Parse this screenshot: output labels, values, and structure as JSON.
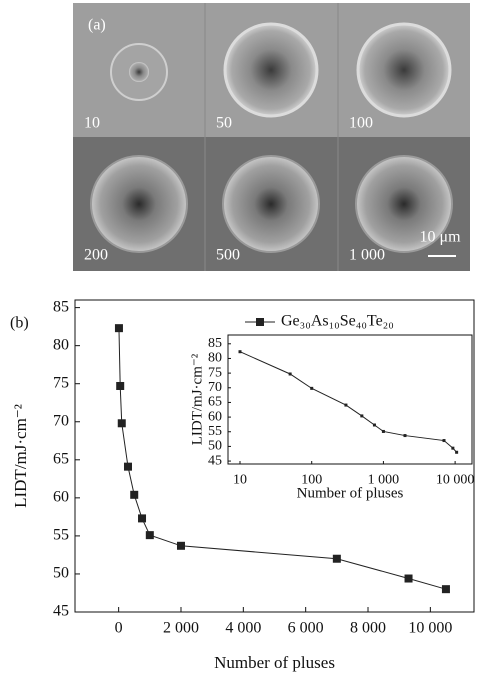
{
  "micrographs": {
    "panel_label": "(a)",
    "labels": [
      "10",
      "50",
      "100",
      "200",
      "500",
      "1 000"
    ],
    "scale_bar": "10 μm"
  },
  "chart_data": [
    {
      "type": "line",
      "panel_label": "(b)",
      "x_label": "Number of pluses",
      "y_label": "LIDT/mJ·cm⁻²",
      "legend": "upper right",
      "x": [
        10,
        50,
        100,
        300,
        500,
        750,
        1000,
        2000,
        7000,
        9300,
        10500
      ],
      "series": [
        {
          "name": "Ge₃₀As₁₀Se₄₀Te₂₀",
          "color": "#222222",
          "values": [
            82.3,
            74.7,
            69.8,
            64.1,
            60.4,
            57.3,
            55.1,
            53.7,
            52.0,
            49.4,
            48.0
          ]
        }
      ],
      "xlim": [
        -1400,
        11400
      ],
      "ylim": [
        45,
        86
      ],
      "xticks": [
        0,
        {
          "value": 2000,
          "label": "2 000"
        },
        {
          "value": 4000,
          "label": "4 000"
        },
        {
          "value": 6000,
          "label": "6 000"
        },
        {
          "value": 8000,
          "label": "8 000"
        },
        {
          "value": 10000,
          "label": "10 000"
        }
      ],
      "yticks": [
        45,
        50,
        55,
        60,
        65,
        70,
        75,
        80,
        85
      ],
      "grid": false
    },
    {
      "type": "line",
      "x_label": "Number of pluses",
      "y_label": "LIDT/mJ·cm⁻²",
      "log_x": true,
      "x": [
        10,
        50,
        100,
        300,
        500,
        750,
        1000,
        2000,
        7000,
        9300,
        10500
      ],
      "series": [
        {
          "color": "#222222",
          "values": [
            82.3,
            74.7,
            69.8,
            64.1,
            60.4,
            57.3,
            55.1,
            53.7,
            52.0,
            49.4,
            48.0
          ]
        }
      ],
      "xlim": [
        6.8,
        17200
      ],
      "ylim": [
        44,
        88
      ],
      "xticks": [
        10,
        100,
        {
          "value": 1000,
          "label": "1 000"
        },
        {
          "value": 10000,
          "label": "10 000"
        }
      ],
      "yticks": [
        45,
        50,
        55,
        60,
        65,
        70,
        75,
        80,
        85
      ],
      "grid": false
    }
  ]
}
